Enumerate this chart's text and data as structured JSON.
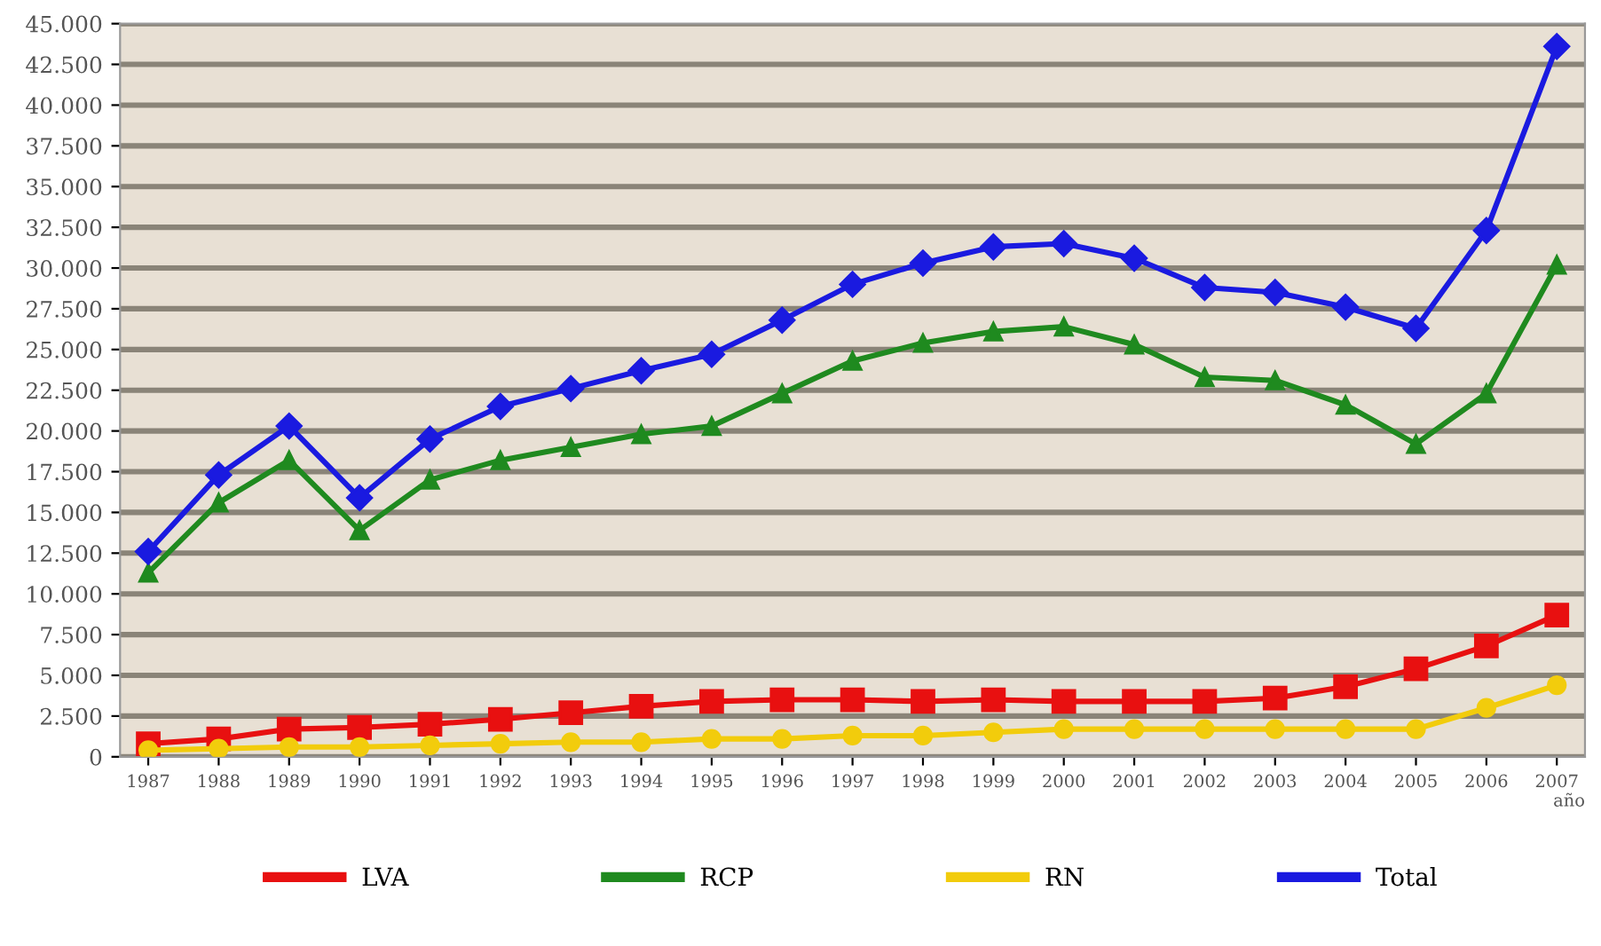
{
  "chart_data": {
    "type": "line",
    "xlabel": "año",
    "categories": [
      "1987",
      "1988",
      "1989",
      "1990",
      "1991",
      "1992",
      "1993",
      "1994",
      "1995",
      "1996",
      "1997",
      "1998",
      "1999",
      "2000",
      "2001",
      "2002",
      "2003",
      "2004",
      "2005",
      "2006",
      "2007"
    ],
    "series": [
      {
        "name": "LVA",
        "color": "#e81010",
        "marker": "square",
        "values": [
          800,
          1100,
          1700,
          1800,
          2000,
          2300,
          2700,
          3100,
          3400,
          3500,
          3500,
          3400,
          3500,
          3400,
          3400,
          3400,
          3600,
          4300,
          5400,
          6800,
          8700
        ]
      },
      {
        "name": "RCP",
        "color": "#1f8a1f",
        "marker": "triangle",
        "values": [
          11300,
          15600,
          18200,
          13900,
          17000,
          18200,
          19000,
          19800,
          20300,
          22300,
          24300,
          25400,
          26100,
          26400,
          25300,
          23300,
          23100,
          21600,
          19200,
          22300,
          30200
        ]
      },
      {
        "name": "RN",
        "color": "#f2cc0c",
        "marker": "circle",
        "values": [
          400,
          500,
          600,
          600,
          700,
          800,
          900,
          900,
          1100,
          1100,
          1300,
          1300,
          1500,
          1700,
          1700,
          1700,
          1700,
          1700,
          1700,
          3000,
          4400
        ]
      },
      {
        "name": "Total",
        "color": "#1a1ae0",
        "marker": "diamond",
        "values": [
          12600,
          17300,
          20300,
          15900,
          19500,
          21500,
          22600,
          23700,
          24700,
          26800,
          29000,
          30300,
          31300,
          31500,
          30600,
          28800,
          28500,
          27600,
          26300,
          32300,
          43600
        ]
      }
    ],
    "ylim": [
      0,
      45000
    ],
    "yticks": [
      0,
      {
        "value": 2500,
        "label": "2.500"
      },
      {
        "value": 5000,
        "label": "5.000"
      },
      {
        "value": 7500,
        "label": "7.500"
      },
      {
        "value": 10000,
        "label": "10.000"
      },
      {
        "value": 12500,
        "label": "12.500"
      },
      {
        "value": 15000,
        "label": "15.000"
      },
      {
        "value": 17500,
        "label": "17.500"
      },
      {
        "value": 20000,
        "label": "20.000"
      },
      {
        "value": 22500,
        "label": "22.500"
      },
      {
        "value": 25000,
        "label": "25.000"
      },
      {
        "value": 27500,
        "label": "27.500"
      },
      {
        "value": 30000,
        "label": "30.000"
      },
      {
        "value": 32500,
        "label": "32.500"
      },
      {
        "value": 35000,
        "label": "35.000"
      },
      {
        "value": 37500,
        "label": "37.500"
      },
      {
        "value": 40000,
        "label": "40.000"
      },
      {
        "value": 42500,
        "label": "42.500"
      },
      {
        "value": 45000,
        "label": "45.000"
      }
    ],
    "grid": "y",
    "legend": "bottom",
    "line_style": "solid"
  }
}
